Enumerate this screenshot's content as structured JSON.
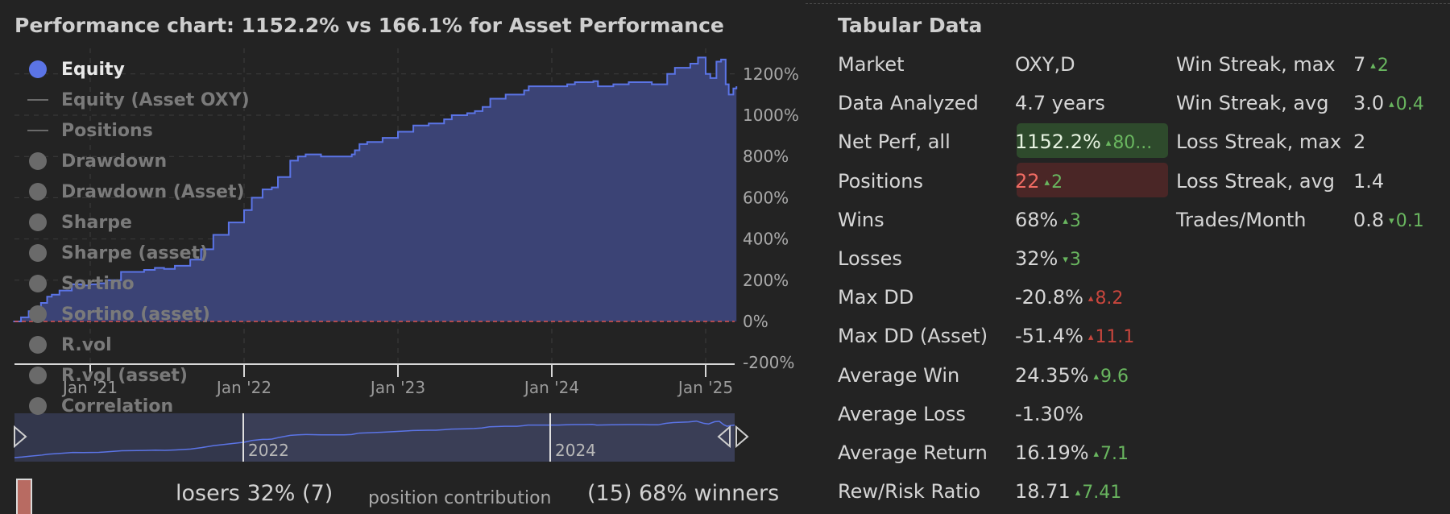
{
  "chart_title": "Performance chart: 1152.2% vs 166.1% for Asset Performance",
  "legend": [
    {
      "label": "Equity",
      "marker": "dot",
      "active": true
    },
    {
      "label": "Equity (Asset OXY)",
      "marker": "line",
      "active": false
    },
    {
      "label": "Positions",
      "marker": "line",
      "active": false
    },
    {
      "label": "Drawdown",
      "marker": "dot",
      "active": false
    },
    {
      "label": "Drawdown (Asset)",
      "marker": "dot",
      "active": false
    },
    {
      "label": "Sharpe",
      "marker": "dot",
      "active": false
    },
    {
      "label": "Sharpe (asset)",
      "marker": "dot",
      "active": false
    },
    {
      "label": "Sortino",
      "marker": "dot",
      "active": false
    },
    {
      "label": "Sortino (asset)",
      "marker": "dot",
      "active": false
    },
    {
      "label": "R.vol",
      "marker": "dot",
      "active": false
    },
    {
      "label": "R.vol (asset)",
      "marker": "dot",
      "active": false
    },
    {
      "label": "Correlation",
      "marker": "dot",
      "active": false
    }
  ],
  "chart_data": {
    "type": "area",
    "title": "Performance chart: 1152.2% vs 166.1% for Asset Performance",
    "xlabel": "",
    "ylabel": "",
    "x_tick_labels": [
      "Jan '21",
      "Jan '22",
      "Jan '23",
      "Jan '24",
      "Jan '25"
    ],
    "y_tick_labels": [
      "1200%",
      "1000%",
      "800%",
      "600%",
      "400%",
      "200%",
      "0%",
      "-200%"
    ],
    "ylim": [
      -200,
      1300
    ],
    "x_range": [
      2020.5,
      2025.2
    ],
    "grid": true,
    "zero_line": true,
    "colors": {
      "line": "#5b74e6",
      "fill": "#3b4375",
      "zero_line": "#d9534f"
    },
    "series": [
      {
        "name": "Equity",
        "x": [
          2020.5,
          2020.55,
          2020.6,
          2020.68,
          2020.72,
          2020.75,
          2020.8,
          2020.88,
          2020.95,
          2021.0,
          2021.05,
          2021.1,
          2021.2,
          2021.35,
          2021.42,
          2021.48,
          2021.55,
          2021.65,
          2021.72,
          2021.8,
          2021.9,
          2022.0,
          2022.05,
          2022.12,
          2022.15,
          2022.18,
          2022.22,
          2022.3,
          2022.35,
          2022.4,
          2022.5,
          2022.6,
          2022.65,
          2022.7,
          2022.72,
          2022.75,
          2022.8,
          2022.9,
          2023.0,
          2023.1,
          2023.2,
          2023.25,
          2023.3,
          2023.35,
          2023.45,
          2023.5,
          2023.55,
          2023.6,
          2023.7,
          2023.78,
          2023.82,
          2023.85,
          2023.9,
          2024.0,
          2024.05,
          2024.1,
          2024.15,
          2024.22,
          2024.27,
          2024.3,
          2024.4,
          2024.5,
          2024.6,
          2024.65,
          2024.7,
          2024.75,
          2024.8,
          2024.9,
          2024.95,
          2025.0,
          2025.03,
          2025.07,
          2025.1,
          2025.13,
          2025.15,
          2025.18,
          2025.2
        ],
        "values": [
          0,
          20,
          50,
          90,
          120,
          130,
          150,
          180,
          175,
          180,
          185,
          200,
          240,
          250,
          260,
          255,
          270,
          300,
          350,
          420,
          480,
          540,
          600,
          640,
          640,
          650,
          700,
          780,
          800,
          810,
          800,
          800,
          800,
          810,
          830,
          860,
          870,
          890,
          920,
          950,
          960,
          960,
          980,
          1000,
          1010,
          1020,
          1040,
          1080,
          1100,
          1100,
          1120,
          1140,
          1140,
          1140,
          1140,
          1150,
          1160,
          1160,
          1165,
          1140,
          1150,
          1160,
          1160,
          1150,
          1150,
          1200,
          1230,
          1250,
          1280,
          1200,
          1180,
          1260,
          1270,
          1150,
          1100,
          1130,
          1140
        ]
      }
    ],
    "navigator": {
      "x_tick_labels": [
        "2022",
        "2024"
      ]
    }
  },
  "contribution": {
    "left": "losers 32% (7)",
    "middle": "position contribution",
    "right": "(15) 68% winners"
  },
  "tabular": {
    "title": "Tabular Data",
    "left": [
      {
        "label": "Market",
        "value": "OXY,D",
        "delta": "",
        "dir": ""
      },
      {
        "label": "Data Analyzed",
        "value": "4.7 years",
        "delta": "",
        "dir": ""
      },
      {
        "label": "Net Perf, all",
        "value": "1152.2%",
        "delta": "80...",
        "dir": "up",
        "highlight": "green"
      },
      {
        "label": "Positions",
        "value": "22",
        "delta": "2",
        "dir": "up",
        "highlight": "red"
      },
      {
        "label": "Wins",
        "value": "68%",
        "delta": "3",
        "dir": "up"
      },
      {
        "label": "Losses",
        "value": "32%",
        "delta": "3",
        "dir": "down-green"
      },
      {
        "label": "Max DD",
        "value": "-20.8%",
        "delta": "8.2",
        "dir": "up-red"
      },
      {
        "label": "Max DD (Asset)",
        "value": "-51.4%",
        "delta": "11.1",
        "dir": "up-red"
      },
      {
        "label": "Average Win",
        "value": "24.35%",
        "delta": "9.6",
        "dir": "up"
      },
      {
        "label": "Average Loss",
        "value": "-1.30%",
        "delta": "",
        "dir": ""
      },
      {
        "label": "Average Return",
        "value": "16.19%",
        "delta": "7.1",
        "dir": "up"
      },
      {
        "label": "Rew/Risk Ratio",
        "value": "18.71",
        "delta": "7.41",
        "dir": "up"
      }
    ],
    "right": [
      {
        "label": "Win Streak, max",
        "value": "7",
        "delta": "2",
        "dir": "up"
      },
      {
        "label": "Win Streak, avg",
        "value": "3.0",
        "delta": "0.4",
        "dir": "up"
      },
      {
        "label": "Loss Streak, max",
        "value": "2",
        "delta": "",
        "dir": ""
      },
      {
        "label": "Loss Streak, avg",
        "value": "1.4",
        "delta": "",
        "dir": ""
      },
      {
        "label": "Trades/Month",
        "value": "0.8",
        "delta": "0.1",
        "dir": "down-green"
      }
    ]
  }
}
